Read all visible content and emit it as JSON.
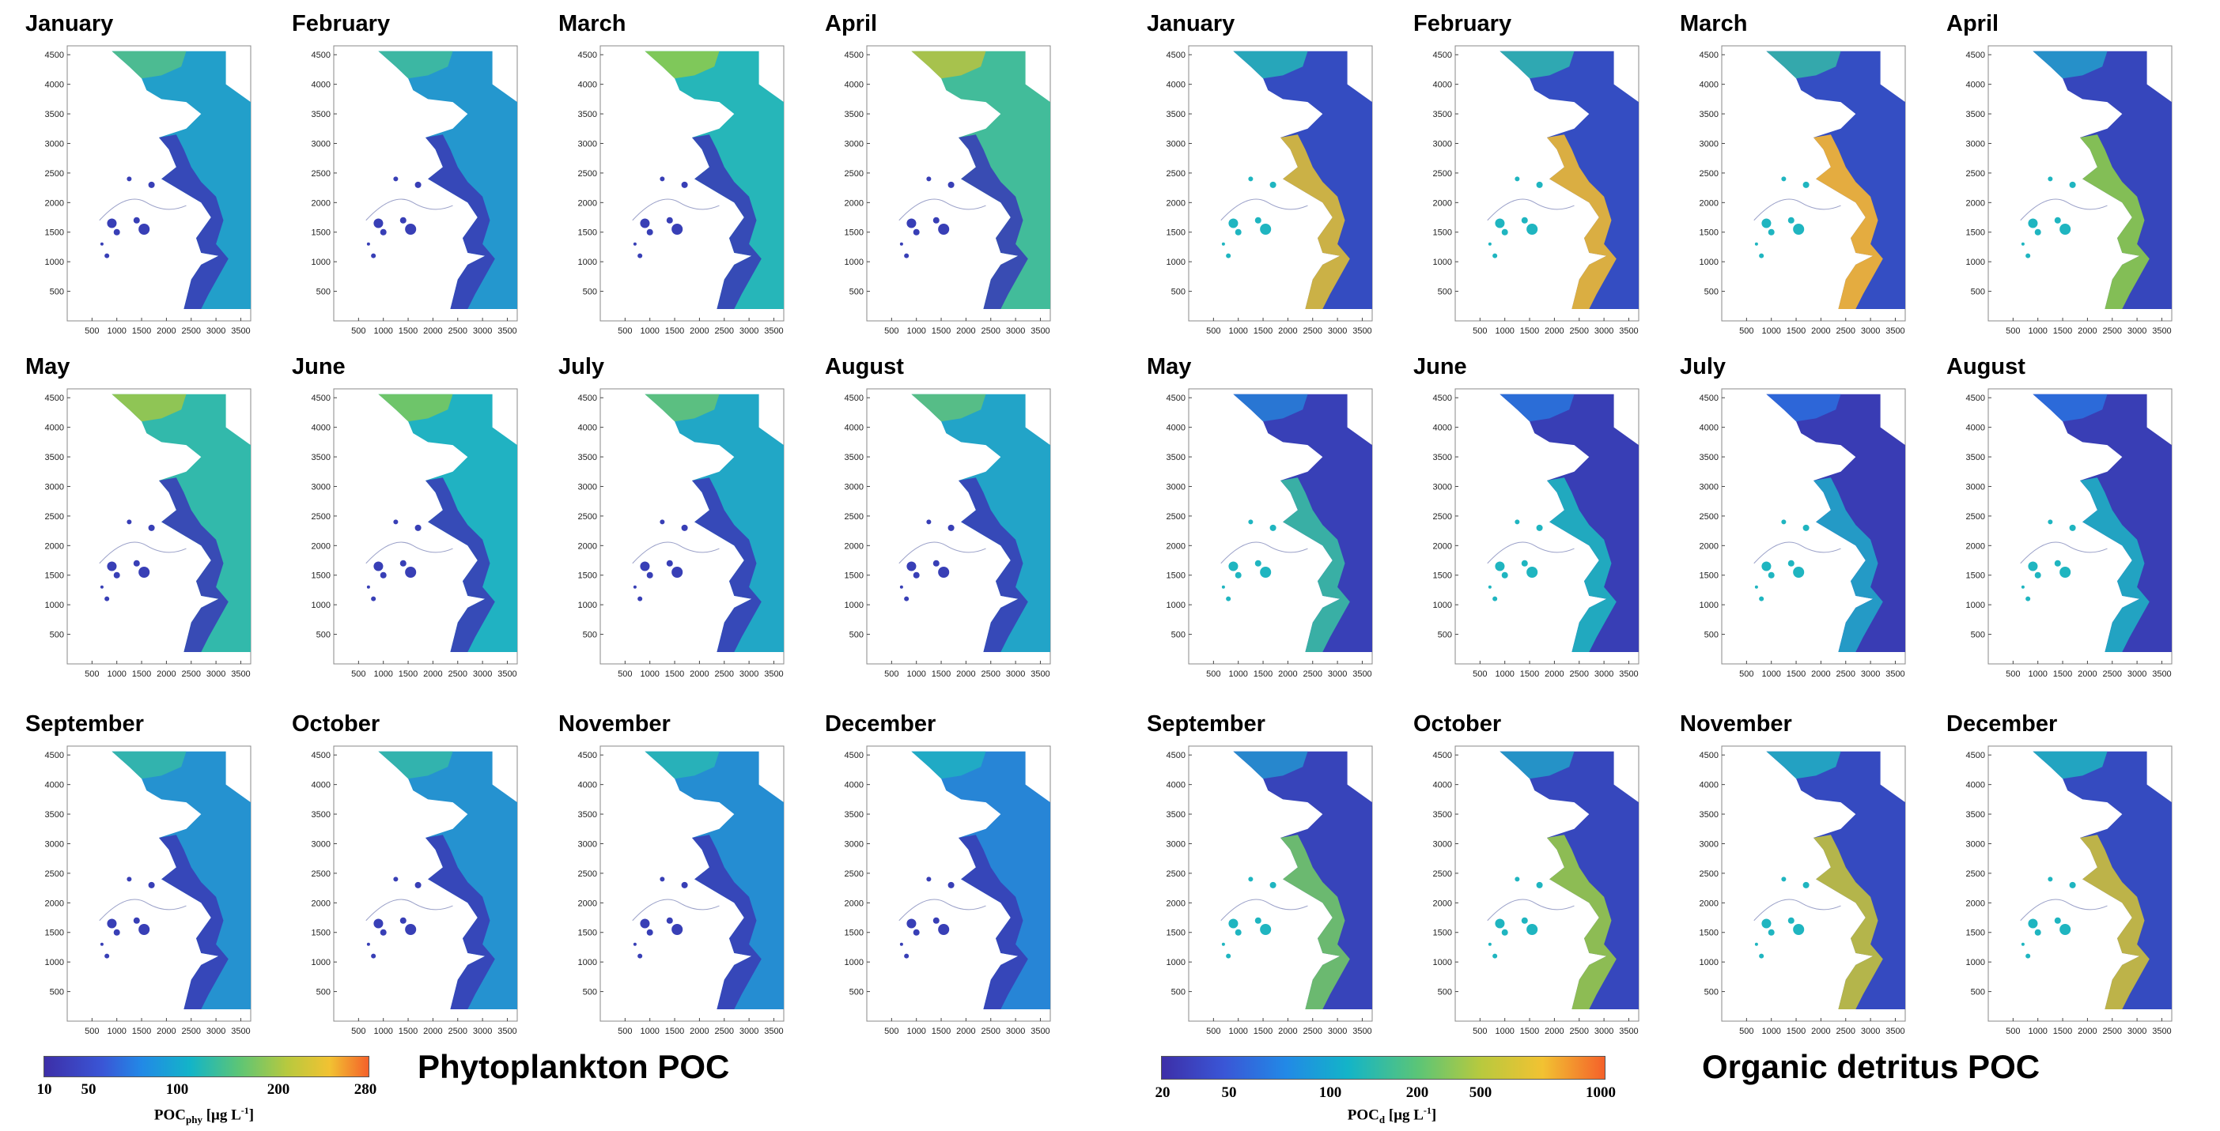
{
  "chart_data": [
    {
      "type": "heatmap",
      "title": "Phytoplankton POC",
      "panels": [
        "January",
        "February",
        "March",
        "April",
        "May",
        "June",
        "July",
        "August",
        "September",
        "October",
        "November",
        "December"
      ],
      "x_ticks": [
        500,
        1000,
        1500,
        2000,
        2500,
        3000,
        3500
      ],
      "y_ticks": [
        500,
        1000,
        1500,
        2000,
        2500,
        3000,
        3500,
        4000,
        4500
      ],
      "xlim": [
        0,
        3700
      ],
      "ylim": [
        0,
        4650
      ],
      "colorbar": {
        "ticks": [
          "10",
          "50",
          "100",
          "200",
          "280"
        ],
        "range": [
          10,
          280
        ],
        "label_main": "POC",
        "label_sub": "phy",
        "label_unit_pre": " [μg L",
        "label_sup": "-1",
        "label_unit_post": "]"
      },
      "monthly_level": [
        0.45,
        0.42,
        0.55,
        0.62,
        0.58,
        0.52,
        0.48,
        0.47,
        0.4,
        0.4,
        0.38,
        0.35
      ]
    },
    {
      "type": "heatmap",
      "title": "Organic detritus POC",
      "panels": [
        "January",
        "February",
        "March",
        "April",
        "May",
        "June",
        "July",
        "August",
        "September",
        "October",
        "November",
        "December"
      ],
      "x_ticks": [
        500,
        1000,
        1500,
        2000,
        2500,
        3000,
        3500
      ],
      "y_ticks": [
        500,
        1000,
        1500,
        2000,
        2500,
        3000,
        3500,
        4000,
        4500
      ],
      "xlim": [
        0,
        3700
      ],
      "ylim": [
        0,
        4650
      ],
      "colorbar": {
        "ticks": [
          "20",
          "50",
          "100",
          "200",
          "500",
          "1000"
        ],
        "range": [
          20,
          1000
        ],
        "scale": "log",
        "label_main": "POC",
        "label_sub": "d",
        "label_unit_pre": " [μg L",
        "label_sup": "-1",
        "label_unit_post": "]"
      },
      "monthly_level": [
        0.75,
        0.78,
        0.8,
        0.6,
        0.45,
        0.4,
        0.35,
        0.38,
        0.55,
        0.62,
        0.7,
        0.72
      ]
    }
  ],
  "colors": {
    "low": "#3d2fa8",
    "mid": "#1fb5c0",
    "mid2": "#8ccb4a",
    "high": "#f7b732",
    "max": "#f4612a"
  }
}
